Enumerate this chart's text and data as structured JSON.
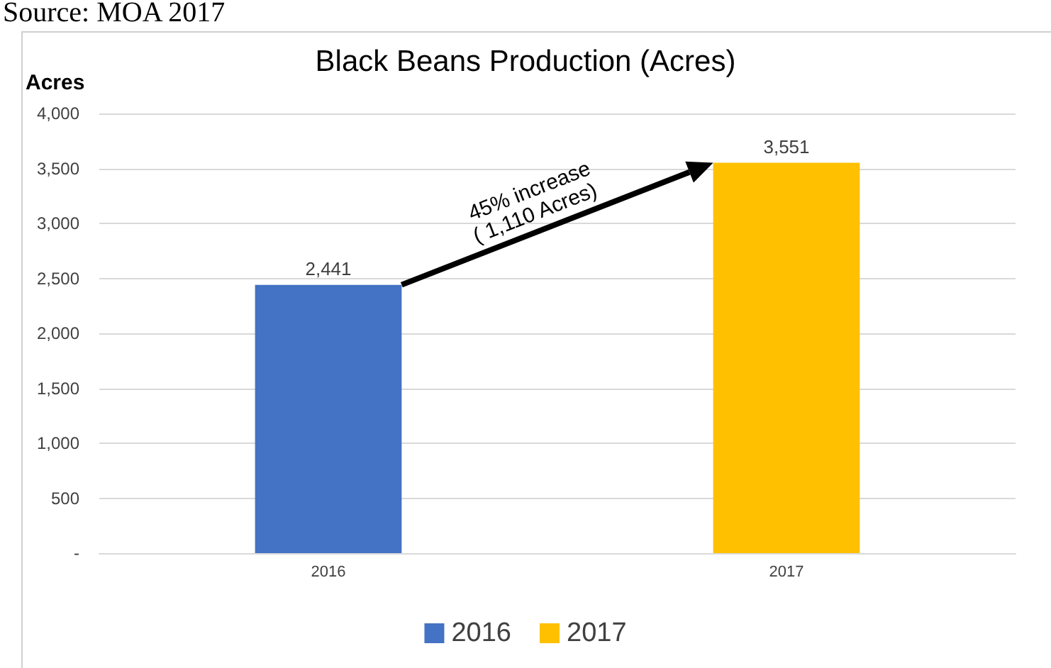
{
  "chart_data": {
    "type": "bar",
    "title": "Black Beans Production (Acres)",
    "ylabel": "Acres",
    "categories": [
      "2016",
      "2017"
    ],
    "series": [
      {
        "name": "2016",
        "color": "#4472c4",
        "values": [
          2441,
          null
        ]
      },
      {
        "name": "2017",
        "color": "#ffc000",
        "values": [
          null,
          3551
        ]
      }
    ],
    "ylim": [
      0,
      4000
    ],
    "yticks": [
      {
        "value": 0,
        "label": "-"
      },
      {
        "value": 500,
        "label": "500"
      },
      {
        "value": 1000,
        "label": "1,000"
      },
      {
        "value": 1500,
        "label": "1,500"
      },
      {
        "value": 2000,
        "label": "2,000"
      },
      {
        "value": 2500,
        "label": "2,500"
      },
      {
        "value": 3000,
        "label": "3,000"
      },
      {
        "value": 3500,
        "label": "3,500"
      },
      {
        "value": 4000,
        "label": "4,000"
      }
    ],
    "value_labels": [
      "2,441",
      "3,551"
    ],
    "annotations": [
      "Source: MOA 2017",
      "45% increase",
      "( 1,110 Acres)"
    ],
    "grid": "y",
    "legend": "bottom"
  }
}
